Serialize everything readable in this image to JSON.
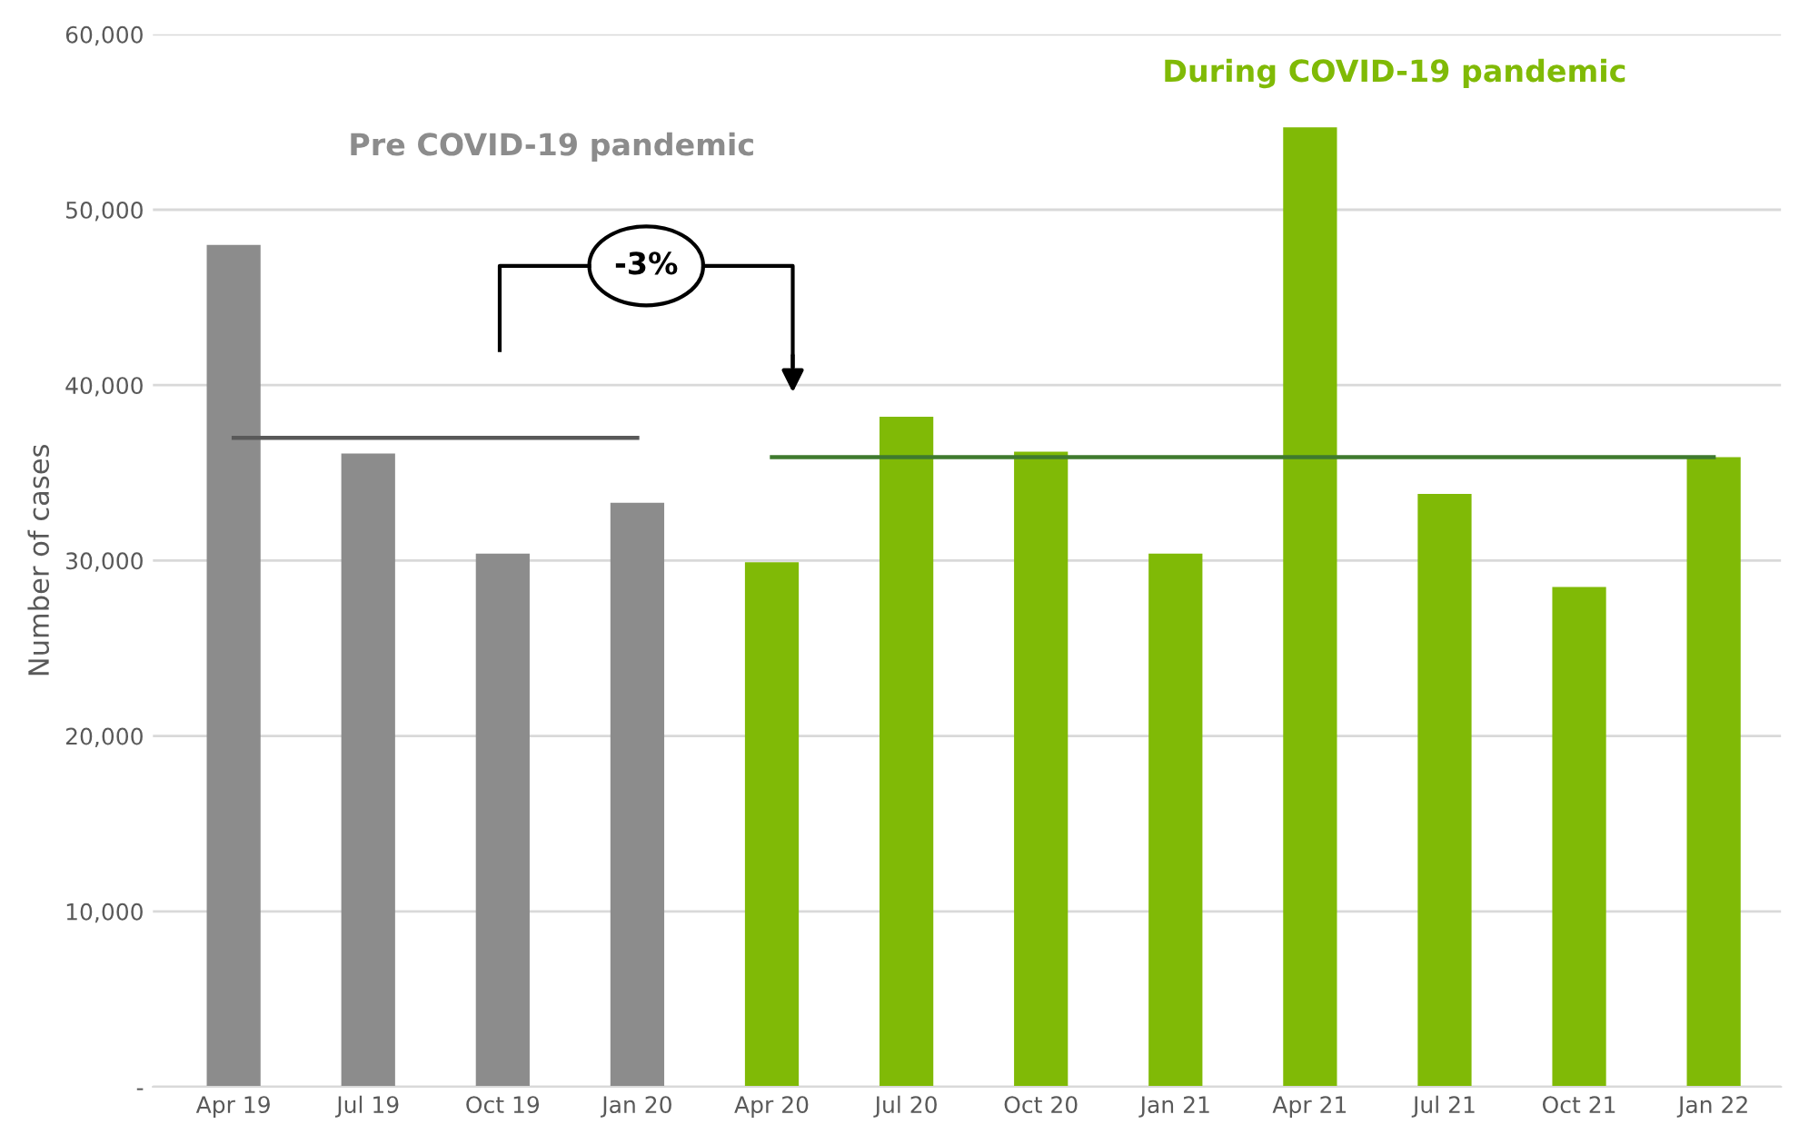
{
  "chart_data": {
    "type": "bar",
    "ylabel": "Number of cases",
    "categories": [
      "Apr 19",
      "Jul 19",
      "Oct 19",
      "Jan 20",
      "Apr 20",
      "Jul 20",
      "Oct 20",
      "Jan 21",
      "Apr 21",
      "Jul 21",
      "Oct 21",
      "Jan 22"
    ],
    "series": [
      {
        "color": "#8c8c8c",
        "values": [
          48000,
          36100,
          30400,
          33300,
          null,
          null,
          null,
          null,
          null,
          null,
          null,
          null
        ]
      },
      {
        "color": "#80ba06",
        "values": [
          null,
          null,
          null,
          null,
          29900,
          38200,
          36200,
          30400,
          54700,
          33800,
          28500,
          35900
        ]
      },
      {
        "type": "line",
        "color": "#595959",
        "values": [
          37000,
          37000,
          37000,
          37000,
          null,
          null,
          null,
          null,
          null,
          null,
          null,
          null
        ]
      },
      {
        "type": "line",
        "color": "#3f7a2e",
        "values": [
          null,
          null,
          null,
          null,
          35900,
          35900,
          35900,
          35900,
          35900,
          35900,
          35900,
          35900
        ]
      }
    ],
    "ylim": [
      0,
      60000
    ],
    "yticks": [
      {
        "value": 0,
        "label": "-"
      },
      {
        "value": 10000,
        "label": "10,000"
      },
      {
        "value": 20000,
        "label": "20,000"
      },
      {
        "value": 30000,
        "label": "30,000"
      },
      {
        "value": 40000,
        "label": "40,000"
      },
      {
        "value": 50000,
        "label": "50,000"
      },
      {
        "value": 60000,
        "label": "60,000"
      }
    ],
    "grid": "y",
    "annotations": [
      "Pre COVID-19 pandemic",
      "During COVID-19 pandemic",
      "-3%"
    ]
  }
}
